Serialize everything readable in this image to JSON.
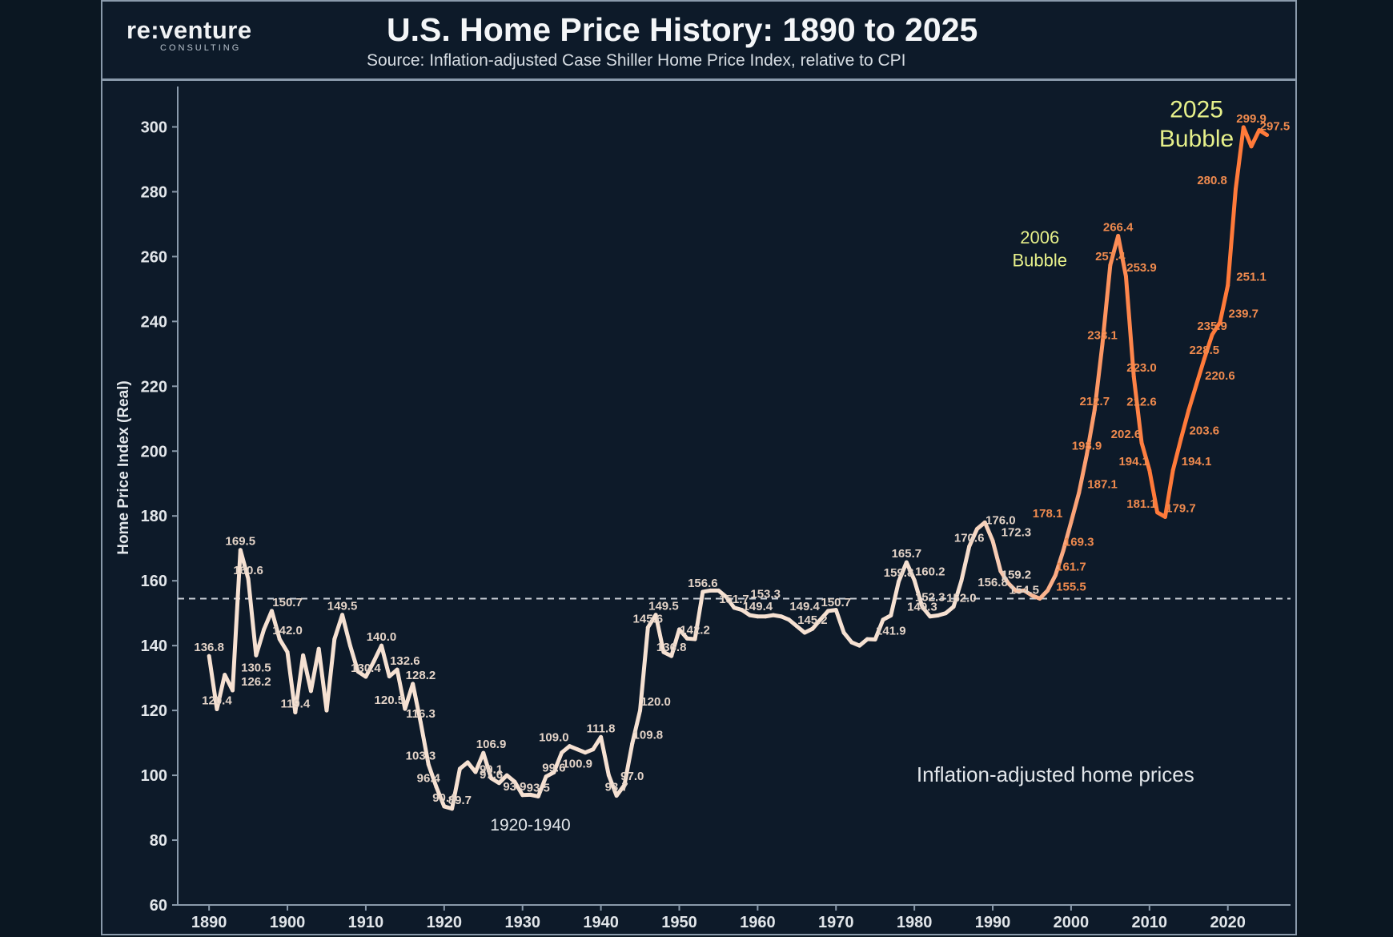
{
  "brand": {
    "name": "re:venture",
    "tagline": "CONSULTING"
  },
  "title": "U.S. Home Price History: 1890 to 2025",
  "subtitle": "Source: Inflation-adjusted Case Shiller Home Price Index, relative to CPI",
  "colors": {
    "background": "#0d1a29",
    "early_line": "#f6e1d2",
    "late_line": "#ff7a3a",
    "highlight_text": "#e6f08a",
    "label_light": "#e3d3c7",
    "label_orange": "#ef8a4e"
  },
  "chart_data": {
    "type": "line",
    "title": "U.S. Home Price History: 1890 to 2025",
    "xlabel": "",
    "ylabel": "Home Price Index (Real)",
    "xlim": [
      1886,
      2028
    ],
    "ylim": [
      60,
      310
    ],
    "x_ticks": [
      1890,
      1900,
      1910,
      1920,
      1930,
      1940,
      1950,
      1960,
      1970,
      1980,
      1990,
      2000,
      2010,
      2020
    ],
    "y_ticks": [
      60,
      80,
      100,
      120,
      140,
      160,
      180,
      200,
      220,
      240,
      260,
      280,
      300
    ],
    "reference_line": {
      "y": 154.5,
      "style": "dashed"
    },
    "grid": false,
    "series": [
      {
        "points": [
          [
            1890,
            136.8
          ],
          [
            1891,
            120.4
          ],
          [
            1892,
            131.0
          ],
          [
            1893,
            126.2
          ],
          [
            1894,
            169.5
          ],
          [
            1895,
            160.6
          ],
          [
            1896,
            137.0
          ],
          [
            1897,
            145.0
          ],
          [
            1898,
            150.7
          ],
          [
            1899,
            142.0
          ],
          [
            1900,
            138.0
          ],
          [
            1901,
            119.4
          ],
          [
            1902,
            137.0
          ],
          [
            1903,
            126.0
          ],
          [
            1904,
            139.0
          ],
          [
            1905,
            120.0
          ],
          [
            1906,
            142.0
          ],
          [
            1907,
            149.5
          ],
          [
            1908,
            140.0
          ],
          [
            1909,
            132.0
          ],
          [
            1910,
            130.4
          ],
          [
            1911,
            135.0
          ],
          [
            1912,
            140.0
          ],
          [
            1913,
            130.5
          ],
          [
            1914,
            132.6
          ],
          [
            1915,
            120.5
          ],
          [
            1916,
            128.2
          ],
          [
            1917,
            116.3
          ],
          [
            1918,
            103.3
          ],
          [
            1919,
            96.4
          ],
          [
            1920,
            90.4
          ],
          [
            1921,
            89.7
          ],
          [
            1922,
            102.0
          ],
          [
            1923,
            104.0
          ],
          [
            1924,
            101.0
          ],
          [
            1925,
            106.9
          ],
          [
            1926,
            99.1
          ],
          [
            1927,
            97.6
          ],
          [
            1928,
            100.0
          ],
          [
            1929,
            98.0
          ],
          [
            1930,
            93.9
          ],
          [
            1931,
            94.0
          ],
          [
            1932,
            93.5
          ],
          [
            1933,
            99.6
          ],
          [
            1934,
            100.9
          ],
          [
            1935,
            107.0
          ],
          [
            1936,
            109.0
          ],
          [
            1937,
            108.0
          ],
          [
            1938,
            107.0
          ],
          [
            1939,
            108.0
          ],
          [
            1940,
            111.8
          ],
          [
            1941,
            100.0
          ],
          [
            1942,
            93.7
          ],
          [
            1943,
            97.0
          ],
          [
            1944,
            109.8
          ],
          [
            1945,
            120.0
          ],
          [
            1946,
            145.6
          ],
          [
            1947,
            149.5
          ],
          [
            1948,
            138.0
          ],
          [
            1949,
            136.8
          ],
          [
            1950,
            145.0
          ],
          [
            1951,
            142.2
          ],
          [
            1952,
            142.0
          ],
          [
            1953,
            156.6
          ],
          [
            1954,
            157.0
          ],
          [
            1955,
            157.0
          ],
          [
            1956,
            155.0
          ],
          [
            1957,
            151.7
          ],
          [
            1958,
            151.0
          ],
          [
            1959,
            149.4
          ],
          [
            1960,
            149.0
          ],
          [
            1961,
            149.0
          ],
          [
            1962,
            149.4
          ],
          [
            1963,
            149.0
          ],
          [
            1964,
            148.0
          ],
          [
            1965,
            146.0
          ],
          [
            1966,
            144.0
          ],
          [
            1967,
            145.2
          ],
          [
            1968,
            148.0
          ],
          [
            1969,
            150.7
          ],
          [
            1970,
            151.0
          ],
          [
            1971,
            144.0
          ],
          [
            1972,
            141.0
          ],
          [
            1973,
            140.0
          ],
          [
            1974,
            142.0
          ],
          [
            1975,
            141.9
          ],
          [
            1976,
            148.0
          ],
          [
            1977,
            149.3
          ],
          [
            1978,
            159.8
          ],
          [
            1979,
            165.7
          ],
          [
            1980,
            160.2
          ],
          [
            1981,
            152.0
          ],
          [
            1982,
            149.0
          ],
          [
            1983,
            149.3
          ],
          [
            1984,
            150.0
          ],
          [
            1985,
            152.0
          ],
          [
            1986,
            160.0
          ],
          [
            1987,
            170.6
          ],
          [
            1988,
            176.0
          ],
          [
            1989,
            178.0
          ],
          [
            1990,
            172.3
          ],
          [
            1991,
            163.0
          ],
          [
            1992,
            159.2
          ],
          [
            1993,
            156.8
          ],
          [
            1994,
            157.0
          ],
          [
            1995,
            155.5
          ],
          [
            1996,
            154.5
          ],
          [
            1997,
            157.0
          ],
          [
            1998,
            161.7
          ],
          [
            1999,
            169.3
          ],
          [
            2000,
            178.1
          ],
          [
            2001,
            187.1
          ],
          [
            2002,
            198.9
          ],
          [
            2003,
            212.7
          ],
          [
            2004,
            233.1
          ],
          [
            2005,
            257.4
          ],
          [
            2006,
            266.4
          ],
          [
            2007,
            253.9
          ],
          [
            2008,
            223.0
          ],
          [
            2009,
            202.6
          ],
          [
            2010,
            194.1
          ],
          [
            2011,
            181.1
          ],
          [
            2012,
            179.7
          ],
          [
            2013,
            194.1
          ],
          [
            2014,
            203.6
          ],
          [
            2015,
            212.6
          ],
          [
            2016,
            220.6
          ],
          [
            2017,
            228.5
          ],
          [
            2018,
            235.9
          ],
          [
            2019,
            239.7
          ],
          [
            2020,
            251.1
          ],
          [
            2021,
            280.8
          ],
          [
            2022,
            299.9
          ],
          [
            2023,
            294.0
          ],
          [
            2024,
            299.0
          ],
          [
            2025,
            297.5
          ]
        ]
      }
    ],
    "data_labels": [
      {
        "text": "136.8",
        "x": 1890,
        "y": 136.8
      },
      {
        "text": "120.4",
        "x": 1891,
        "y": 120.4
      },
      {
        "text": "169.5",
        "x": 1894,
        "y": 169.5
      },
      {
        "text": "160.6",
        "x": 1895,
        "y": 160.6
      },
      {
        "text": "130.5",
        "x": 1896,
        "y": 130.5
      },
      {
        "text": "126.2",
        "x": 1896,
        "y": 126.2
      },
      {
        "text": "150.7",
        "x": 1900,
        "y": 150.7
      },
      {
        "text": "142.0",
        "x": 1900,
        "y": 142.0
      },
      {
        "text": "119.4",
        "x": 1901,
        "y": 119.4
      },
      {
        "text": "149.5",
        "x": 1907,
        "y": 149.5
      },
      {
        "text": "130.4",
        "x": 1910,
        "y": 130.4
      },
      {
        "text": "140.0",
        "x": 1912,
        "y": 140.0
      },
      {
        "text": "132.6",
        "x": 1915,
        "y": 132.6
      },
      {
        "text": "128.2",
        "x": 1917,
        "y": 128.2
      },
      {
        "text": "120.5",
        "x": 1913,
        "y": 120.5
      },
      {
        "text": "116.3",
        "x": 1917,
        "y": 116.3
      },
      {
        "text": "103.3",
        "x": 1917,
        "y": 103.3
      },
      {
        "text": "96.4",
        "x": 1918,
        "y": 96.4
      },
      {
        "text": "90.4",
        "x": 1920,
        "y": 90.4
      },
      {
        "text": "89.7",
        "x": 1922,
        "y": 89.7
      },
      {
        "text": "106.9",
        "x": 1926,
        "y": 106.9
      },
      {
        "text": "99.1",
        "x": 1926,
        "y": 99.1
      },
      {
        "text": "97.6",
        "x": 1926,
        "y": 97.6
      },
      {
        "text": "93.9",
        "x": 1929,
        "y": 93.9
      },
      {
        "text": "109.0",
        "x": 1934,
        "y": 109.0
      },
      {
        "text": "99.6",
        "x": 1934,
        "y": 99.6
      },
      {
        "text": "93.5",
        "x": 1932,
        "y": 93.5
      },
      {
        "text": "111.8",
        "x": 1940,
        "y": 111.8
      },
      {
        "text": "100.9",
        "x": 1937,
        "y": 100.9
      },
      {
        "text": "93.7",
        "x": 1942,
        "y": 93.7
      },
      {
        "text": "97.0",
        "x": 1944,
        "y": 97.0
      },
      {
        "text": "109.8",
        "x": 1946,
        "y": 109.8
      },
      {
        "text": "120.0",
        "x": 1947,
        "y": 120.0
      },
      {
        "text": "145.6",
        "x": 1946,
        "y": 145.6
      },
      {
        "text": "149.5",
        "x": 1948,
        "y": 149.5
      },
      {
        "text": "136.8",
        "x": 1949,
        "y": 136.8
      },
      {
        "text": "156.6",
        "x": 1953,
        "y": 156.6
      },
      {
        "text": "142.2",
        "x": 1952,
        "y": 142.2
      },
      {
        "text": "151.7",
        "x": 1957,
        "y": 151.7
      },
      {
        "text": "153.3",
        "x": 1961,
        "y": 153.3
      },
      {
        "text": "149.4",
        "x": 1960,
        "y": 149.4
      },
      {
        "text": "149.4",
        "x": 1966,
        "y": 149.4
      },
      {
        "text": "150.7",
        "x": 1970,
        "y": 150.7
      },
      {
        "text": "145.2",
        "x": 1967,
        "y": 145.2
      },
      {
        "text": "159.8",
        "x": 1978,
        "y": 159.8
      },
      {
        "text": "165.7",
        "x": 1979,
        "y": 165.7
      },
      {
        "text": "160.2",
        "x": 1982,
        "y": 160.2
      },
      {
        "text": "152.3",
        "x": 1982,
        "y": 152.3
      },
      {
        "text": "149.3",
        "x": 1981,
        "y": 149.3
      },
      {
        "text": "141.9",
        "x": 1977,
        "y": 141.9
      },
      {
        "text": "152.0",
        "x": 1986,
        "y": 152.0
      },
      {
        "text": "170.6",
        "x": 1987,
        "y": 170.6
      },
      {
        "text": "176.0",
        "x": 1991,
        "y": 176.0
      },
      {
        "text": "172.3",
        "x": 1993,
        "y": 172.3
      },
      {
        "text": "159.2",
        "x": 1993,
        "y": 159.2
      },
      {
        "text": "156.8",
        "x": 1990,
        "y": 156.8
      },
      {
        "text": "178.1",
        "x": 1997,
        "y": 178.1
      },
      {
        "text": "169.3",
        "x": 2001,
        "y": 169.3
      },
      {
        "text": "161.7",
        "x": 2000,
        "y": 161.7
      },
      {
        "text": "155.5",
        "x": 2000,
        "y": 155.5
      },
      {
        "text": "154.5",
        "x": 1994,
        "y": 154.5
      },
      {
        "text": "187.1",
        "x": 2004,
        "y": 187.1
      },
      {
        "text": "198.9",
        "x": 2002,
        "y": 198.9
      },
      {
        "text": "212.7",
        "x": 2003,
        "y": 212.7
      },
      {
        "text": "233.1",
        "x": 2004,
        "y": 233.1
      },
      {
        "text": "257.4",
        "x": 2005,
        "y": 257.4
      },
      {
        "text": "266.4",
        "x": 2006,
        "y": 266.4
      },
      {
        "text": "253.9",
        "x": 2009,
        "y": 253.9
      },
      {
        "text": "202.6",
        "x": 2007,
        "y": 202.6
      },
      {
        "text": "194.1",
        "x": 2008,
        "y": 194.1
      },
      {
        "text": "223.0",
        "x": 2009,
        "y": 223.0
      },
      {
        "text": "212.6",
        "x": 2009,
        "y": 212.6
      },
      {
        "text": "181.1",
        "x": 2009,
        "y": 181.1
      },
      {
        "text": "179.7",
        "x": 2014,
        "y": 179.7
      },
      {
        "text": "194.1",
        "x": 2016,
        "y": 194.1
      },
      {
        "text": "203.6",
        "x": 2017,
        "y": 203.6
      },
      {
        "text": "220.6",
        "x": 2019,
        "y": 220.6
      },
      {
        "text": "228.5",
        "x": 2017,
        "y": 228.5
      },
      {
        "text": "235.9",
        "x": 2018,
        "y": 235.9
      },
      {
        "text": "239.7",
        "x": 2022,
        "y": 239.7
      },
      {
        "text": "251.1",
        "x": 2023,
        "y": 251.1
      },
      {
        "text": "280.8",
        "x": 2018,
        "y": 280.8
      },
      {
        "text": "299.9",
        "x": 2023,
        "y": 299.9
      },
      {
        "text": "297.5",
        "x": 2026,
        "y": 297.5
      }
    ],
    "annotations": [
      {
        "text": "1920-1940",
        "x": 1931,
        "y": 83
      },
      {
        "text": "Inflation-adjusted home prices",
        "x": 1998,
        "y": 98
      },
      {
        "text": "2006",
        "x": 1996,
        "y": 264
      },
      {
        "text": "Bubble",
        "x": 1996,
        "y": 257
      },
      {
        "text": "2025",
        "x": 2016,
        "y": 303
      },
      {
        "text": "Bubble",
        "x": 2016,
        "y": 294
      }
    ]
  }
}
